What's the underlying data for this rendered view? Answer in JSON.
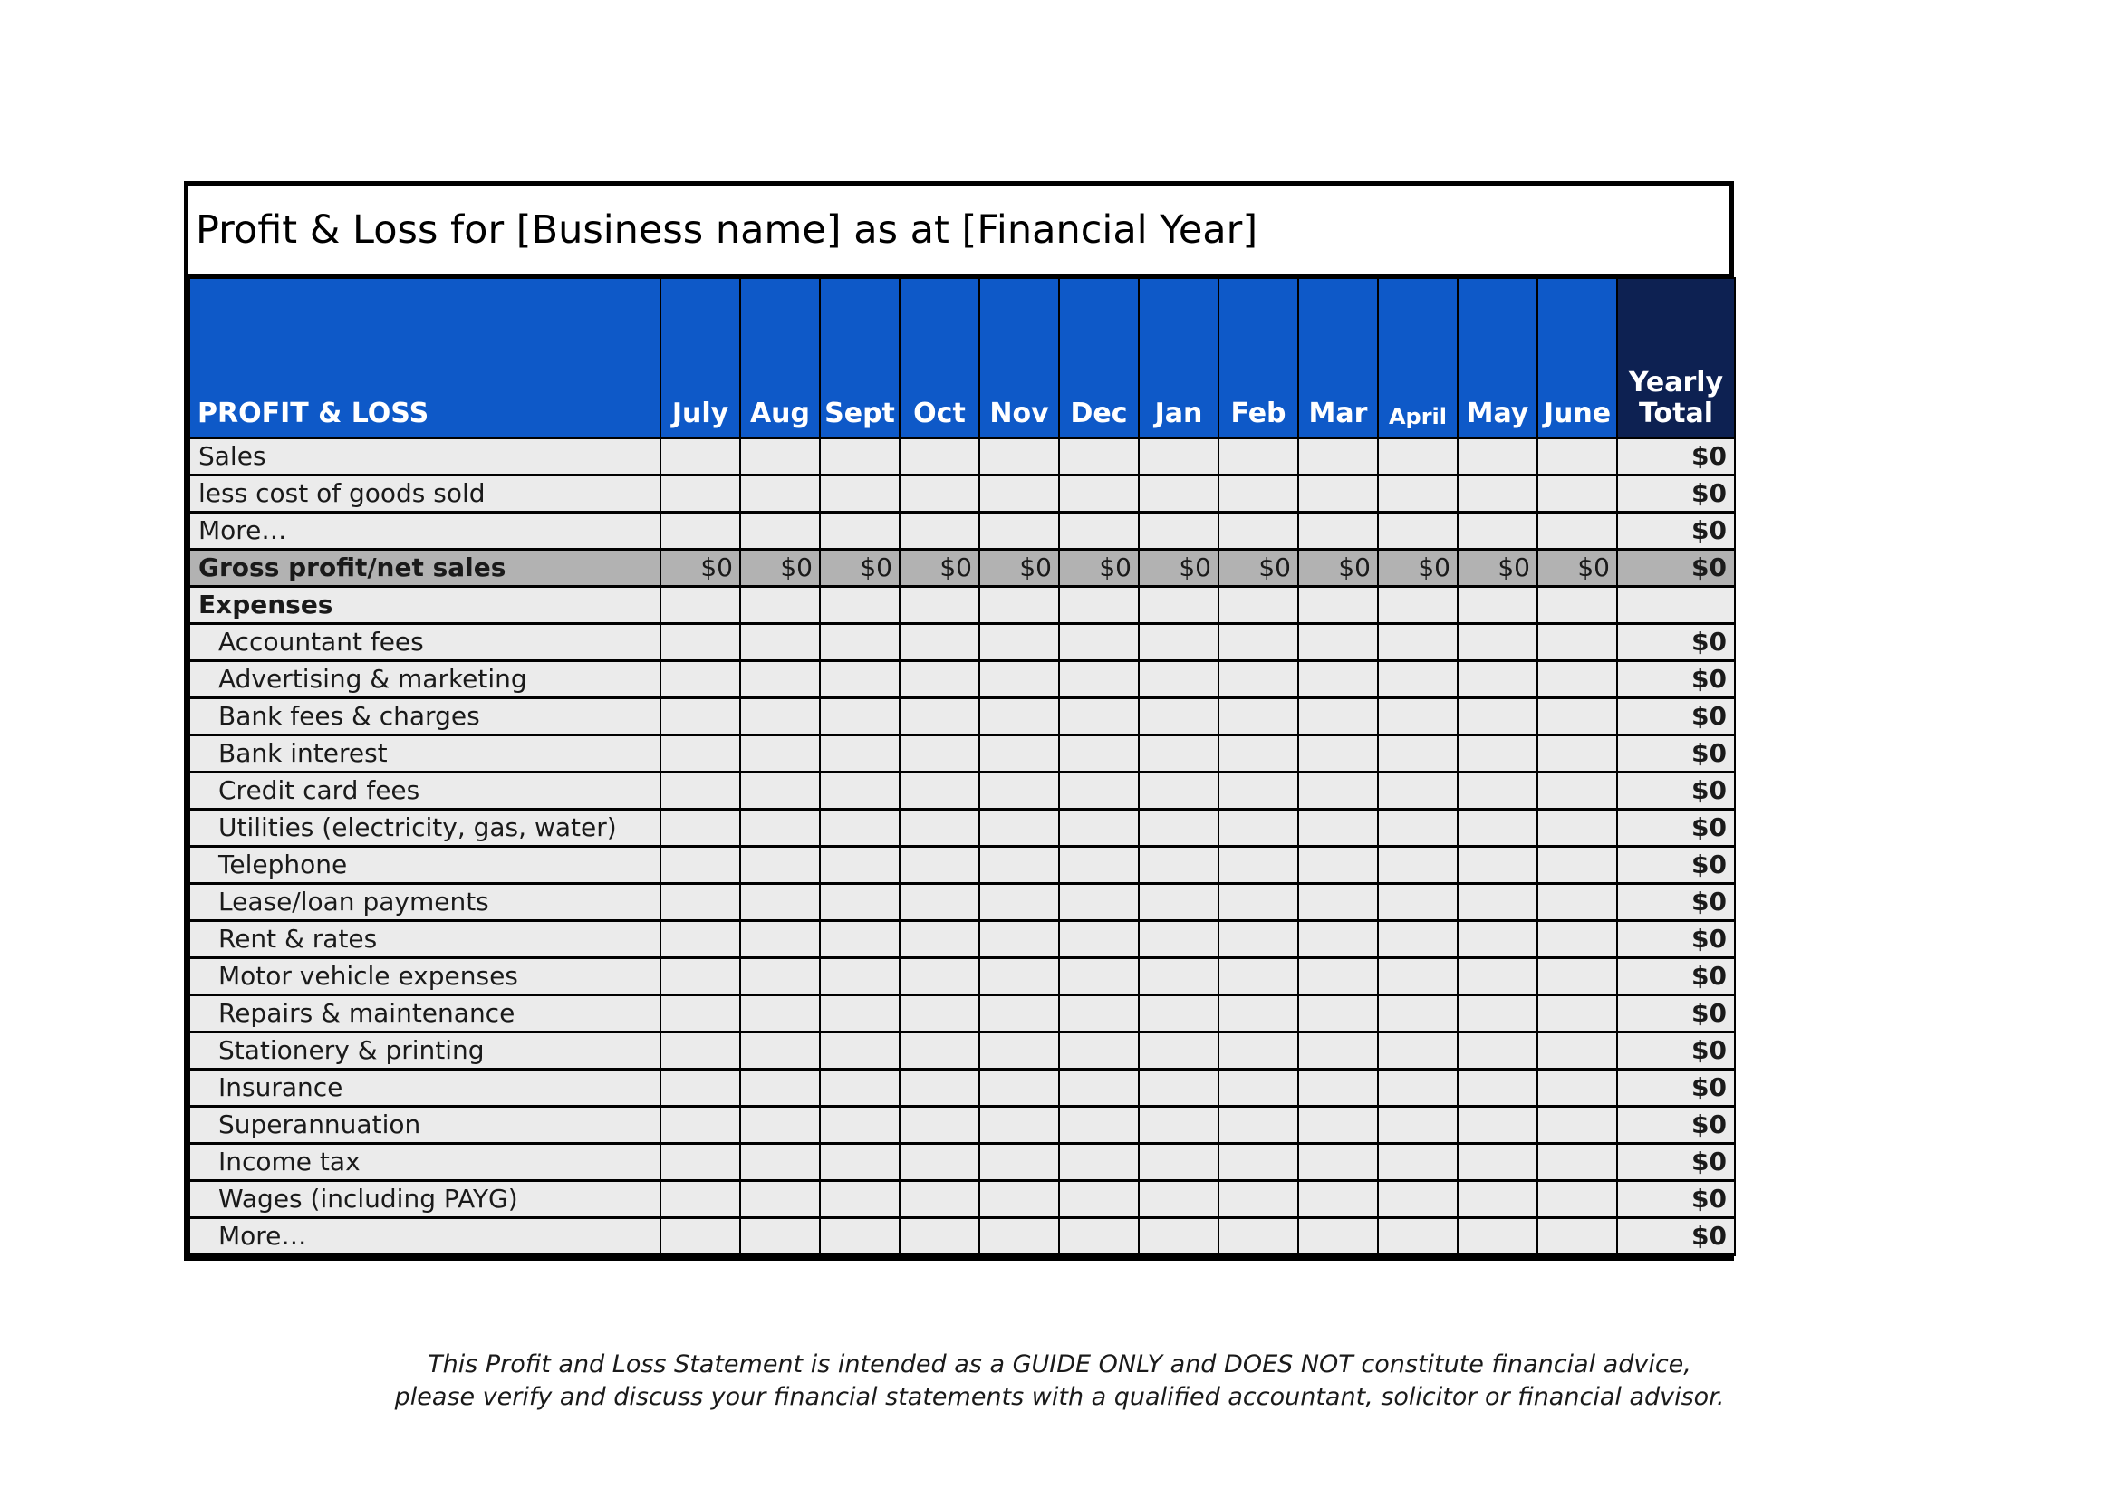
{
  "title": "Profit & Loss for [Business name] as at [Financial Year]",
  "table": {
    "header": {
      "label": "PROFIT & LOSS",
      "months": [
        "July",
        "Aug",
        "Sept",
        "Oct",
        "Nov",
        "Dec",
        "Jan",
        "Feb",
        "Mar",
        "April",
        "May",
        "June"
      ],
      "yearly_total": "Yearly\nTotal"
    },
    "rows": [
      {
        "label": "Sales",
        "style": "normal",
        "indent": false,
        "monthly": [],
        "yearly": "$0"
      },
      {
        "label": "less cost of goods sold",
        "style": "normal",
        "indent": false,
        "monthly": [],
        "yearly": "$0"
      },
      {
        "label": "More…",
        "style": "normal",
        "indent": false,
        "monthly": [],
        "yearly": "$0"
      },
      {
        "label": "Gross profit/net sales",
        "style": "total",
        "indent": false,
        "monthly": [
          "$0",
          "$0",
          "$0",
          "$0",
          "$0",
          "$0",
          "$0",
          "$0",
          "$0",
          "$0",
          "$0",
          "$0"
        ],
        "yearly": "$0"
      },
      {
        "label": "Expenses",
        "style": "section",
        "indent": false,
        "monthly": [],
        "yearly": ""
      },
      {
        "label": "Accountant fees",
        "style": "normal",
        "indent": true,
        "monthly": [],
        "yearly": "$0"
      },
      {
        "label": "Advertising & marketing",
        "style": "normal",
        "indent": true,
        "monthly": [],
        "yearly": "$0"
      },
      {
        "label": "Bank fees & charges",
        "style": "normal",
        "indent": true,
        "monthly": [],
        "yearly": "$0"
      },
      {
        "label": "Bank interest",
        "style": "normal",
        "indent": true,
        "monthly": [],
        "yearly": "$0"
      },
      {
        "label": "Credit card fees",
        "style": "normal",
        "indent": true,
        "monthly": [],
        "yearly": "$0"
      },
      {
        "label": "Utilities (electricity, gas, water)",
        "style": "normal",
        "indent": true,
        "monthly": [],
        "yearly": "$0"
      },
      {
        "label": "Telephone",
        "style": "normal",
        "indent": true,
        "monthly": [],
        "yearly": "$0"
      },
      {
        "label": "Lease/loan payments",
        "style": "normal",
        "indent": true,
        "monthly": [],
        "yearly": "$0"
      },
      {
        "label": "Rent & rates",
        "style": "normal",
        "indent": true,
        "monthly": [],
        "yearly": "$0"
      },
      {
        "label": "Motor vehicle expenses",
        "style": "normal",
        "indent": true,
        "monthly": [],
        "yearly": "$0"
      },
      {
        "label": "Repairs & maintenance",
        "style": "normal",
        "indent": true,
        "monthly": [],
        "yearly": "$0"
      },
      {
        "label": "Stationery & printing",
        "style": "normal",
        "indent": true,
        "monthly": [],
        "yearly": "$0"
      },
      {
        "label": "Insurance",
        "style": "normal",
        "indent": true,
        "monthly": [],
        "yearly": "$0"
      },
      {
        "label": "Superannuation",
        "style": "normal",
        "indent": true,
        "monthly": [],
        "yearly": "$0"
      },
      {
        "label": "Income tax",
        "style": "normal",
        "indent": true,
        "monthly": [],
        "yearly": "$0"
      },
      {
        "label": "Wages (including PAYG)",
        "style": "normal",
        "indent": true,
        "monthly": [],
        "yearly": "$0"
      },
      {
        "label": "More…",
        "style": "normal",
        "indent": true,
        "monthly": [],
        "yearly": "$0"
      }
    ]
  },
  "footer": {
    "line1": "This Profit and Loss Statement is intended as a GUIDE ONLY and DOES NOT constitute financial advice,",
    "line2": "please verify and discuss your financial statements with a qualified accountant, solicitor or financial advisor."
  },
  "colors": {
    "header_blue": "#0e59c8",
    "yearly_navy": "#0d2152",
    "row_bg": "#ebebeb",
    "total_row_bg": "#b2b2b2",
    "border": "#000000"
  }
}
